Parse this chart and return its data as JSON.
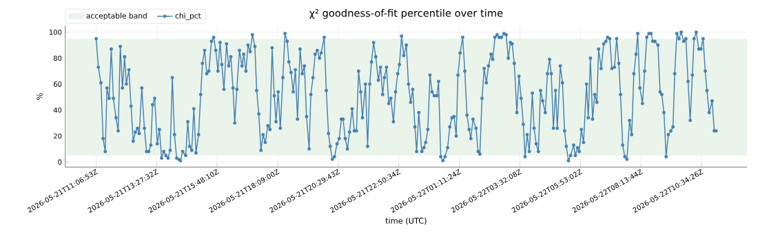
{
  "chart_data": {
    "type": "line",
    "title": "χ² goodness-of-fit percentile over time",
    "xlabel": "time (UTC)",
    "ylabel": "%",
    "x": [
      "2026-05-21T11:07",
      "2026-05-21T11:12",
      "2026-05-21T11:18",
      "2026-05-21T11:23",
      "2026-05-21T11:28",
      "2026-05-21T11:32",
      "2026-05-21T11:37",
      "2026-05-21T11:42",
      "2026-05-21T11:47",
      "2026-05-21T11:53",
      "2026-05-21T11:58",
      "2026-05-21T12:03",
      "2026-05-21T12:08",
      "2026-05-21T12:13",
      "2026-05-21T12:17",
      "2026-05-21T12:23",
      "2026-05-21T12:28",
      "2026-05-21T12:33",
      "2026-05-21T12:38",
      "2026-05-21T12:43",
      "2026-05-21T12:47",
      "2026-05-21T12:53",
      "2026-05-21T12:59",
      "2026-05-21T13:04",
      "2026-05-21T13:09",
      "2026-05-21T13:14",
      "2026-05-21T13:18",
      "2026-05-21T13:23",
      "2026-05-21T13:29",
      "2026-05-21T13:34",
      "2026-05-21T13:39",
      "2026-05-21T13:44",
      "2026-05-21T13:49",
      "2026-05-21T13:54",
      "2026-05-21T13:59",
      "2026-05-21T14:04",
      "2026-05-21T14:09",
      "2026-05-21T14:14",
      "2026-05-21T14:19",
      "2026-05-21T14:23",
      "2026-05-21T14:28",
      "2026-05-21T14:35",
      "2026-05-21T14:40",
      "2026-05-21T14:44",
      "2026-05-21T14:49",
      "2026-05-21T14:54",
      "2026-05-21T14:59",
      "2026-05-21T15:05",
      "2026-05-21T15:10",
      "2026-05-21T15:14",
      "2026-05-21T15:19",
      "2026-05-21T15:24",
      "2026-05-21T15:29",
      "2026-05-21T15:35",
      "2026-05-21T15:40",
      "2026-05-21T15:45",
      "2026-05-21T15:50",
      "2026-05-21T15:55",
      "2026-05-21T15:59",
      "2026-05-21T16:04",
      "2026-05-21T16:10",
      "2026-05-21T16:15",
      "2026-05-21T16:20",
      "2026-05-21T16:25",
      "2026-05-21T16:29",
      "2026-05-21T16:34",
      "2026-05-21T16:40",
      "2026-05-21T16:46",
      "2026-05-21T16:50",
      "2026-05-21T16:55",
      "2026-05-21T17:00",
      "2026-05-21T17:05",
      "2026-05-21T17:10",
      "2026-05-21T17:16",
      "2026-05-21T17:20",
      "2026-05-21T17:25",
      "2026-05-21T17:30",
      "2026-05-21T17:35",
      "2026-05-21T17:40",
      "2026-05-21T17:46",
      "2026-05-21T17:51",
      "2026-05-21T17:56",
      "2026-05-21T18:01",
      "2026-05-21T18:05",
      "2026-05-21T18:10",
      "2026-05-21T18:15",
      "2026-05-21T18:21",
      "2026-05-21T18:26",
      "2026-05-21T18:31",
      "2026-05-21T18:35",
      "2026-05-21T18:40",
      "2026-05-21T18:45",
      "2026-05-21T18:50",
      "2026-05-21T18:55",
      "2026-05-21T19:01",
      "2026-05-21T19:06",
      "2026-05-21T19:11",
      "2026-05-21T19:16",
      "2026-05-21T19:22",
      "2026-05-21T19:26",
      "2026-05-21T19:31",
      "2026-05-21T19:36",
      "2026-05-21T19:41",
      "2026-05-21T19:46",
      "2026-05-21T19:50",
      "2026-05-21T19:57",
      "2026-05-21T20:02",
      "2026-05-21T20:07",
      "2026-05-21T20:11",
      "2026-05-21T20:16",
      "2026-05-21T20:21",
      "2026-05-21T20:27",
      "2026-05-21T20:32",
      "2026-05-21T20:37",
      "2026-05-21T20:41",
      "2026-05-21T20:46",
      "2026-05-21T20:51",
      "2026-05-21T20:56",
      "2026-05-21T21:02",
      "2026-05-21T21:07",
      "2026-05-21T21:12",
      "2026-05-21T21:17",
      "2026-05-21T21:22",
      "2026-05-21T21:26",
      "2026-05-21T21:33",
      "2026-05-21T21:38",
      "2026-05-21T21:43",
      "2026-05-21T21:47",
      "2026-05-21T21:52",
      "2026-05-21T21:57",
      "2026-05-21T22:03",
      "2026-05-21T22:08",
      "2026-05-21T22:13",
      "2026-05-21T22:17",
      "2026-05-21T22:22",
      "2026-05-21T22:27",
      "2026-05-21T22:32",
      "2026-05-21T22:38",
      "2026-05-21T22:43",
      "2026-05-21T22:48",
      "2026-05-21T22:52",
      "2026-05-21T22:57",
      "2026-05-21T23:02",
      "2026-05-21T23:08",
      "2026-05-21T23:13",
      "2026-05-21T23:18",
      "2026-05-21T23:23",
      "2026-05-21T23:28",
      "2026-05-21T23:32",
      "2026-05-21T23:37",
      "2026-05-21T23:44",
      "2026-05-21T23:49",
      "2026-05-21T23:53",
      "2026-05-21T23:58",
      "2026-05-22T00:03",
      "2026-05-22T00:08",
      "2026-05-22T00:13",
      "2026-05-22T00:19",
      "2026-05-22T00:23",
      "2026-05-22T00:28",
      "2026-05-22T00:33",
      "2026-05-22T00:38",
      "2026-05-22T00:44",
      "2026-05-22T00:49",
      "2026-05-22T00:54",
      "2026-05-22T00:59",
      "2026-05-22T01:04",
      "2026-05-22T01:08",
      "2026-05-22T01:13",
      "2026-05-22T01:19",
      "2026-05-22T01:24",
      "2026-05-22T01:29",
      "2026-05-22T01:34",
      "2026-05-22T01:38",
      "2026-05-22T01:43",
      "2026-05-22T01:50",
      "2026-05-22T01:55",
      "2026-05-22T01:59",
      "2026-05-22T02:04",
      "2026-05-22T02:09",
      "2026-05-22T02:14",
      "2026-05-22T02:19",
      "2026-05-22T02:25",
      "2026-05-22T02:29",
      "2026-05-22T02:34",
      "2026-05-22T02:39",
      "2026-05-22T02:44",
      "2026-05-22T02:49",
      "2026-05-22T02:55",
      "2026-05-22T03:00",
      "2026-05-22T03:05",
      "2026-05-22T03:10",
      "2026-05-22T03:14",
      "2026-05-22T03:19",
      "2026-05-22T03:25",
      "2026-05-22T03:30",
      "2026-05-22T03:35",
      "2026-05-22T03:40",
      "2026-05-22T03:44",
      "2026-05-22T03:49",
      "2026-05-22T03:54",
      "2026-05-22T04:01",
      "2026-05-22T04:05",
      "2026-05-22T04:10",
      "2026-05-22T04:15",
      "2026-05-22T04:20",
      "2026-05-22T04:25",
      "2026-05-22T04:31",
      "2026-05-22T04:36",
      "2026-05-22T04:41",
      "2026-05-22T04:45",
      "2026-05-22T04:50",
      "2026-05-22T04:55",
      "2026-05-22T04:59",
      "2026-05-22T05:06",
      "2026-05-22T05:11",
      "2026-05-22T05:16",
      "2026-05-22T05:20",
      "2026-05-22T05:25",
      "2026-05-22T05:30",
      "2026-05-22T05:37",
      "2026-05-22T05:41",
      "2026-05-22T05:46",
      "2026-05-22T05:50",
      "2026-05-22T05:55",
      "2026-05-22T06:00",
      "2026-05-22T06:07",
      "2026-05-22T06:11",
      "2026-05-22T06:16",
      "2026-05-22T06:21",
      "2026-05-22T06:26",
      "2026-05-22T06:31",
      "2026-05-22T06:35",
      "2026-05-22T06:41",
      "2026-05-22T06:47",
      "2026-05-22T06:52",
      "2026-05-22T06:56",
      "2026-05-22T07:01",
      "2026-05-22T07:06",
      "2026-05-22T07:12",
      "2026-05-22T07:17",
      "2026-05-22T07:22",
      "2026-05-22T07:26",
      "2026-05-22T07:31",
      "2026-05-22T07:36",
      "2026-05-22T07:41",
      "2026-05-22T07:47",
      "2026-05-22T07:52",
      "2026-05-22T07:57",
      "2026-05-22T08:02",
      "2026-05-22T08:06",
      "2026-05-22T08:11",
      "2026-05-22T08:17",
      "2026-05-22T08:22",
      "2026-05-22T08:27",
      "2026-05-22T08:32",
      "2026-05-22T08:37",
      "2026-05-22T08:41",
      "2026-05-22T08:46",
      "2026-05-22T08:53",
      "2026-05-22T08:58",
      "2026-05-22T09:02",
      "2026-05-22T09:07",
      "2026-05-22T09:12",
      "2026-05-22T09:17",
      "2026-05-22T09:23",
      "2026-05-22T09:28",
      "2026-05-22T09:32",
      "2026-05-22T09:37",
      "2026-05-22T09:42",
      "2026-05-22T09:47",
      "2026-05-22T09:53",
      "2026-05-22T09:58",
      "2026-05-22T10:03",
      "2026-05-22T10:08",
      "2026-05-22T10:13",
      "2026-05-22T10:17",
      "2026-05-22T10:22",
      "2026-05-22T10:28",
      "2026-05-22T10:33",
      "2026-05-22T10:38",
      "2026-05-22T10:43",
      "2026-05-22T10:47",
      "2026-05-22T10:52",
      "2026-05-22T10:59",
      "2026-05-22T11:04",
      "2026-05-22T11:08"
    ],
    "series": [
      {
        "name": "chi_pct",
        "color": "#4682b4",
        "values": [
          95,
          73,
          61,
          18,
          8,
          57,
          49,
          87,
          49,
          34,
          24,
          89,
          57,
          81,
          60,
          71,
          43,
          16,
          23,
          26,
          22,
          57,
          26,
          8,
          8,
          13,
          44,
          49,
          14,
          25,
          3,
          8,
          5,
          3,
          9,
          65,
          21,
          3,
          2,
          1,
          8,
          5,
          31,
          12,
          9,
          41,
          7,
          21,
          52,
          76,
          86,
          68,
          70,
          93,
          96,
          86,
          70,
          92,
          75,
          56,
          91,
          74,
          81,
          57,
          30,
          56,
          86,
          74,
          83,
          70,
          90,
          85,
          98,
          89,
          55,
          37,
          9,
          21,
          15,
          28,
          25,
          88,
          51,
          31,
          54,
          26,
          65,
          99,
          93,
          77,
          69,
          54,
          71,
          33,
          87,
          68,
          74,
          35,
          10,
          52,
          65,
          83,
          86,
          80,
          84,
          96,
          55,
          22,
          12,
          2,
          4,
          14,
          18,
          33,
          33,
          18,
          10,
          23,
          41,
          24,
          24,
          70,
          54,
          34,
          60,
          12,
          60,
          77,
          92,
          81,
          63,
          73,
          52,
          65,
          73,
          45,
          49,
          31,
          54,
          68,
          75,
          97,
          82,
          90,
          60,
          46,
          56,
          27,
          8,
          38,
          8,
          11,
          15,
          25,
          67,
          54,
          51,
          51,
          62,
          4,
          1,
          4,
          11,
          27,
          34,
          35,
          20,
          67,
          84,
          96,
          70,
          36,
          25,
          18,
          33,
          26,
          8,
          6,
          49,
          72,
          61,
          74,
          83,
          79,
          96,
          98,
          96,
          96,
          99,
          98,
          80,
          92,
          91,
          76,
          38,
          66,
          49,
          29,
          4,
          21,
          8,
          53,
          26,
          14,
          8,
          55,
          47,
          38,
          68,
          79,
          68,
          26,
          55,
          26,
          74,
          61,
          24,
          12,
          1,
          5,
          13,
          5,
          11,
          8,
          25,
          15,
          60,
          34,
          80,
          33,
          52,
          46,
          87,
          72,
          91,
          93,
          96,
          95,
          72,
          73,
          95,
          76,
          52,
          13,
          4,
          2,
          32,
          21,
          68,
          83,
          99,
          57,
          45,
          70,
          96,
          99,
          99,
          93,
          93,
          90,
          54,
          52,
          38,
          4,
          21,
          24,
          27,
          68,
          99,
          95,
          100,
          93,
          95,
          62,
          32,
          67,
          95,
          100,
          87,
          87,
          95,
          70,
          55,
          38,
          47,
          24,
          24
        ]
      }
    ],
    "bands": [
      {
        "axis": "y",
        "from": 5,
        "to": 95,
        "label": "acceptable band",
        "color": "#eaf4ea"
      }
    ],
    "xlim": [
      "2026-05-21T09:55",
      "2026-05-22T12:20"
    ],
    "ylim": [
      -4,
      105
    ],
    "xticks": [
      {
        "value": "2026-05-21T11:06:53",
        "label": "2026-05-21T11:06:53Z"
      },
      {
        "value": "2026-05-21T13:27:32",
        "label": "2026-05-21T13:27:32Z"
      },
      {
        "value": "2026-05-21T15:48:10",
        "label": "2026-05-21T15:48:10Z"
      },
      {
        "value": "2026-05-21T18:09:00",
        "label": "2026-05-21T18:09:00Z"
      },
      {
        "value": "2026-05-21T20:29:43",
        "label": "2026-05-21T20:29:43Z"
      },
      {
        "value": "2026-05-21T22:50:34",
        "label": "2026-05-21T22:50:34Z"
      },
      {
        "value": "2026-05-22T01:11:24",
        "label": "2026-05-22T01:11:24Z"
      },
      {
        "value": "2026-05-22T03:32:08",
        "label": "2026-05-22T03:32:08Z"
      },
      {
        "value": "2026-05-22T05:53:02",
        "label": "2026-05-22T05:53:02Z"
      },
      {
        "value": "2026-05-22T08:13:44",
        "label": "2026-05-22T08:13:44Z"
      },
      {
        "value": "2026-05-22T10:34:26",
        "label": "2026-05-22T10:34:26Z"
      }
    ],
    "yticks": [
      0,
      20,
      40,
      60,
      80,
      100
    ],
    "grid": true,
    "legend": "top left",
    "marker": "circle",
    "line_style": "solid"
  }
}
